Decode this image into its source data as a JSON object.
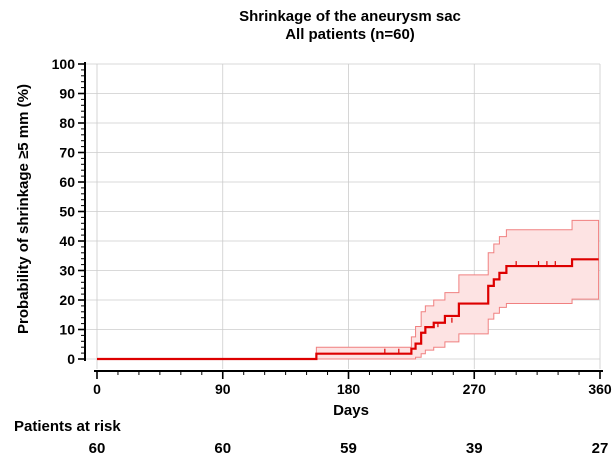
{
  "chart_data": {
    "type": "line",
    "title": "Shrinkage of the aneurysm sac",
    "subtitle": "All patients (n=60)",
    "xlabel": "Days",
    "ylabel": "Probability of shrinkage ≥5 mm (%)",
    "xlim": [
      0,
      360
    ],
    "ylim": [
      0,
      100
    ],
    "xticks": [
      0,
      90,
      180,
      270,
      360
    ],
    "yticks": [
      0,
      10,
      20,
      30,
      40,
      50,
      60,
      70,
      80,
      90,
      100
    ],
    "grid": true,
    "colors": {
      "line": "#dd0000",
      "band_fill": "#fde3e3",
      "band_edge": "#f08080",
      "grid": "#cccccc"
    },
    "series": [
      {
        "x": [
          0,
          157,
          157,
          225,
          225,
          228,
          228,
          232,
          232,
          235,
          235,
          241,
          241,
          249,
          249,
          259,
          259,
          280,
          280,
          284,
          284,
          288,
          288,
          293,
          293,
          340,
          340,
          359
        ],
        "y": [
          0,
          0,
          1.8,
          1.8,
          3.5,
          3.5,
          5.2,
          5.2,
          8.9,
          8.9,
          10.8,
          10.8,
          12.3,
          12.3,
          14.6,
          14.6,
          18.8,
          18.8,
          24.8,
          24.8,
          27,
          27,
          29.2,
          29.2,
          31.5,
          31.5,
          33.8,
          33.8
        ],
        "ci_lower": [
          0,
          0,
          0,
          0,
          0,
          0,
          0.6,
          0.6,
          1.8,
          1.8,
          3,
          3,
          4,
          4,
          5.8,
          5.8,
          8.5,
          8.5,
          13.5,
          13.5,
          15.5,
          15.5,
          17.5,
          17.5,
          18.8,
          18.8,
          20.3,
          20.3
        ],
        "ci_upper": [
          0,
          0,
          4,
          4,
          7.5,
          7.5,
          11,
          11,
          16,
          16,
          18,
          18,
          20,
          20,
          22.5,
          22.5,
          28.5,
          28.5,
          36,
          36,
          39,
          39,
          41.5,
          41.5,
          43.8,
          43.8,
          47,
          47
        ]
      }
    ],
    "censor_marks": [
      {
        "x": 206,
        "y": 1.8
      },
      {
        "x": 216,
        "y": 1.8
      },
      {
        "x": 244,
        "y": 10.8
      },
      {
        "x": 254,
        "y": 12.3
      },
      {
        "x": 300,
        "y": 31.5
      },
      {
        "x": 316,
        "y": 31.5
      },
      {
        "x": 322,
        "y": 31.5
      },
      {
        "x": 328,
        "y": 31.5
      }
    ],
    "risk_table": {
      "heading": "Patients at risk",
      "x": [
        0,
        90,
        180,
        270,
        360
      ],
      "values": [
        "60",
        "60",
        "59",
        "39",
        "27"
      ]
    }
  }
}
